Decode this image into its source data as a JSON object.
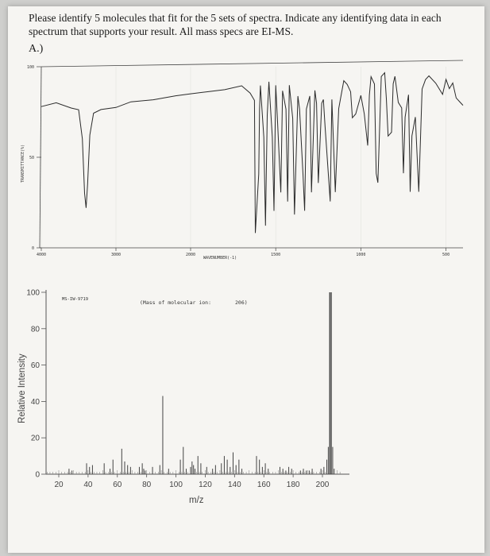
{
  "question": {
    "text": "Please identify 5 molecules that fit for the 5 sets of spectra. Indicate any identifying data in each spectrum that supports your result. All mass specs are EI-MS.",
    "part_label": "A.)"
  },
  "chart_data": [
    {
      "type": "line",
      "ylabel": "TRANSMITTANCE(%)",
      "xlabel": "WAVENUMBER(-1)",
      "xlim": [
        4000,
        400
      ],
      "ylim": [
        0,
        100
      ],
      "x_tick_labels": [
        "4000",
        "3000",
        "2000",
        "1500",
        "1000",
        "500"
      ],
      "y_tick_labels": [
        "100",
        "50",
        "0"
      ],
      "series": [
        {
          "x": [
            4000,
            3800,
            3600,
            3500,
            3450,
            3420,
            3400,
            3380,
            3350,
            3300,
            3200,
            3000,
            2800,
            2500,
            2200,
            2000,
            1900,
            1800,
            1700,
            1650,
            1625,
            1620,
            1600,
            1595,
            1590,
            1570,
            1560,
            1550,
            1540,
            1520,
            1510,
            1500,
            1490,
            1470,
            1460,
            1440,
            1430,
            1420,
            1400,
            1390,
            1370,
            1360,
            1340,
            1330,
            1320,
            1300,
            1295,
            1290,
            1270,
            1260,
            1250,
            1230,
            1220,
            1210,
            1180,
            1170,
            1150,
            1130,
            1120,
            1100,
            1080,
            1060,
            1050,
            1030,
            1000,
            980,
            960,
            950,
            940,
            920,
            910,
            900,
            880,
            860,
            850,
            840,
            820,
            810,
            800,
            780,
            760,
            750,
            740,
            720,
            710,
            700,
            680,
            660,
            640,
            620,
            600,
            560,
            520,
            500,
            480,
            460,
            440,
            420,
            400
          ],
          "y": [
            78,
            80,
            77,
            76,
            60,
            30,
            22,
            35,
            62,
            74,
            76,
            77,
            80,
            81,
            83,
            84,
            85,
            86,
            88,
            84,
            80,
            8,
            40,
            75,
            88,
            60,
            12,
            72,
            90,
            60,
            20,
            88,
            70,
            30,
            85,
            75,
            25,
            88,
            70,
            18,
            82,
            75,
            40,
            20,
            75,
            82,
            60,
            30,
            85,
            78,
            35,
            78,
            80,
            65,
            25,
            80,
            30,
            75,
            80,
            90,
            88,
            84,
            70,
            72,
            82,
            72,
            55,
            82,
            92,
            88,
            40,
            35,
            92,
            94,
            80,
            60,
            62,
            88,
            92,
            78,
            75,
            40,
            70,
            82,
            30,
            60,
            70,
            30,
            85,
            90,
            92,
            88,
            82,
            90,
            85,
            88,
            80,
            78,
            76
          ]
        }
      ]
    },
    {
      "type": "bar",
      "ylabel": "Relative Intensity",
      "xlabel": "m/z",
      "xlim": [
        10,
        212
      ],
      "ylim": [
        0,
        105
      ],
      "x_ticks": [
        20,
        40,
        60,
        80,
        100,
        120,
        140,
        160,
        180,
        200
      ],
      "y_ticks": [
        0,
        20,
        40,
        60,
        80,
        100
      ],
      "annotations": [
        "MS-IW-9719",
        "(Mass of molecular ion:",
        "206)"
      ],
      "series": [
        {
          "x": [
            27,
            29,
            39,
            41,
            43,
            51,
            55,
            57,
            63,
            65,
            67,
            69,
            75,
            77,
            78,
            79,
            84,
            89,
            91,
            95,
            103,
            105,
            107,
            110,
            111,
            112,
            113,
            115,
            117,
            121,
            125,
            127,
            131,
            133,
            135,
            137,
            139,
            141,
            143,
            145,
            155,
            157,
            159,
            161,
            163,
            171,
            173,
            175,
            177,
            179,
            185,
            187,
            189,
            191,
            193,
            199,
            201,
            203,
            204,
            205,
            206,
            207,
            208
          ],
          "y": [
            3,
            2,
            6,
            4,
            5,
            6,
            3,
            8,
            14,
            7,
            5,
            4,
            4,
            6,
            3,
            2,
            4,
            5,
            43,
            3,
            8,
            15,
            3,
            4,
            7,
            5,
            3,
            10,
            6,
            4,
            3,
            5,
            6,
            10,
            8,
            4,
            12,
            5,
            8,
            3,
            10,
            8,
            4,
            6,
            3,
            4,
            3,
            2,
            4,
            3,
            2,
            3,
            2,
            2,
            3,
            3,
            4,
            8,
            15,
            100,
            100,
            15,
            3
          ]
        }
      ]
    }
  ]
}
